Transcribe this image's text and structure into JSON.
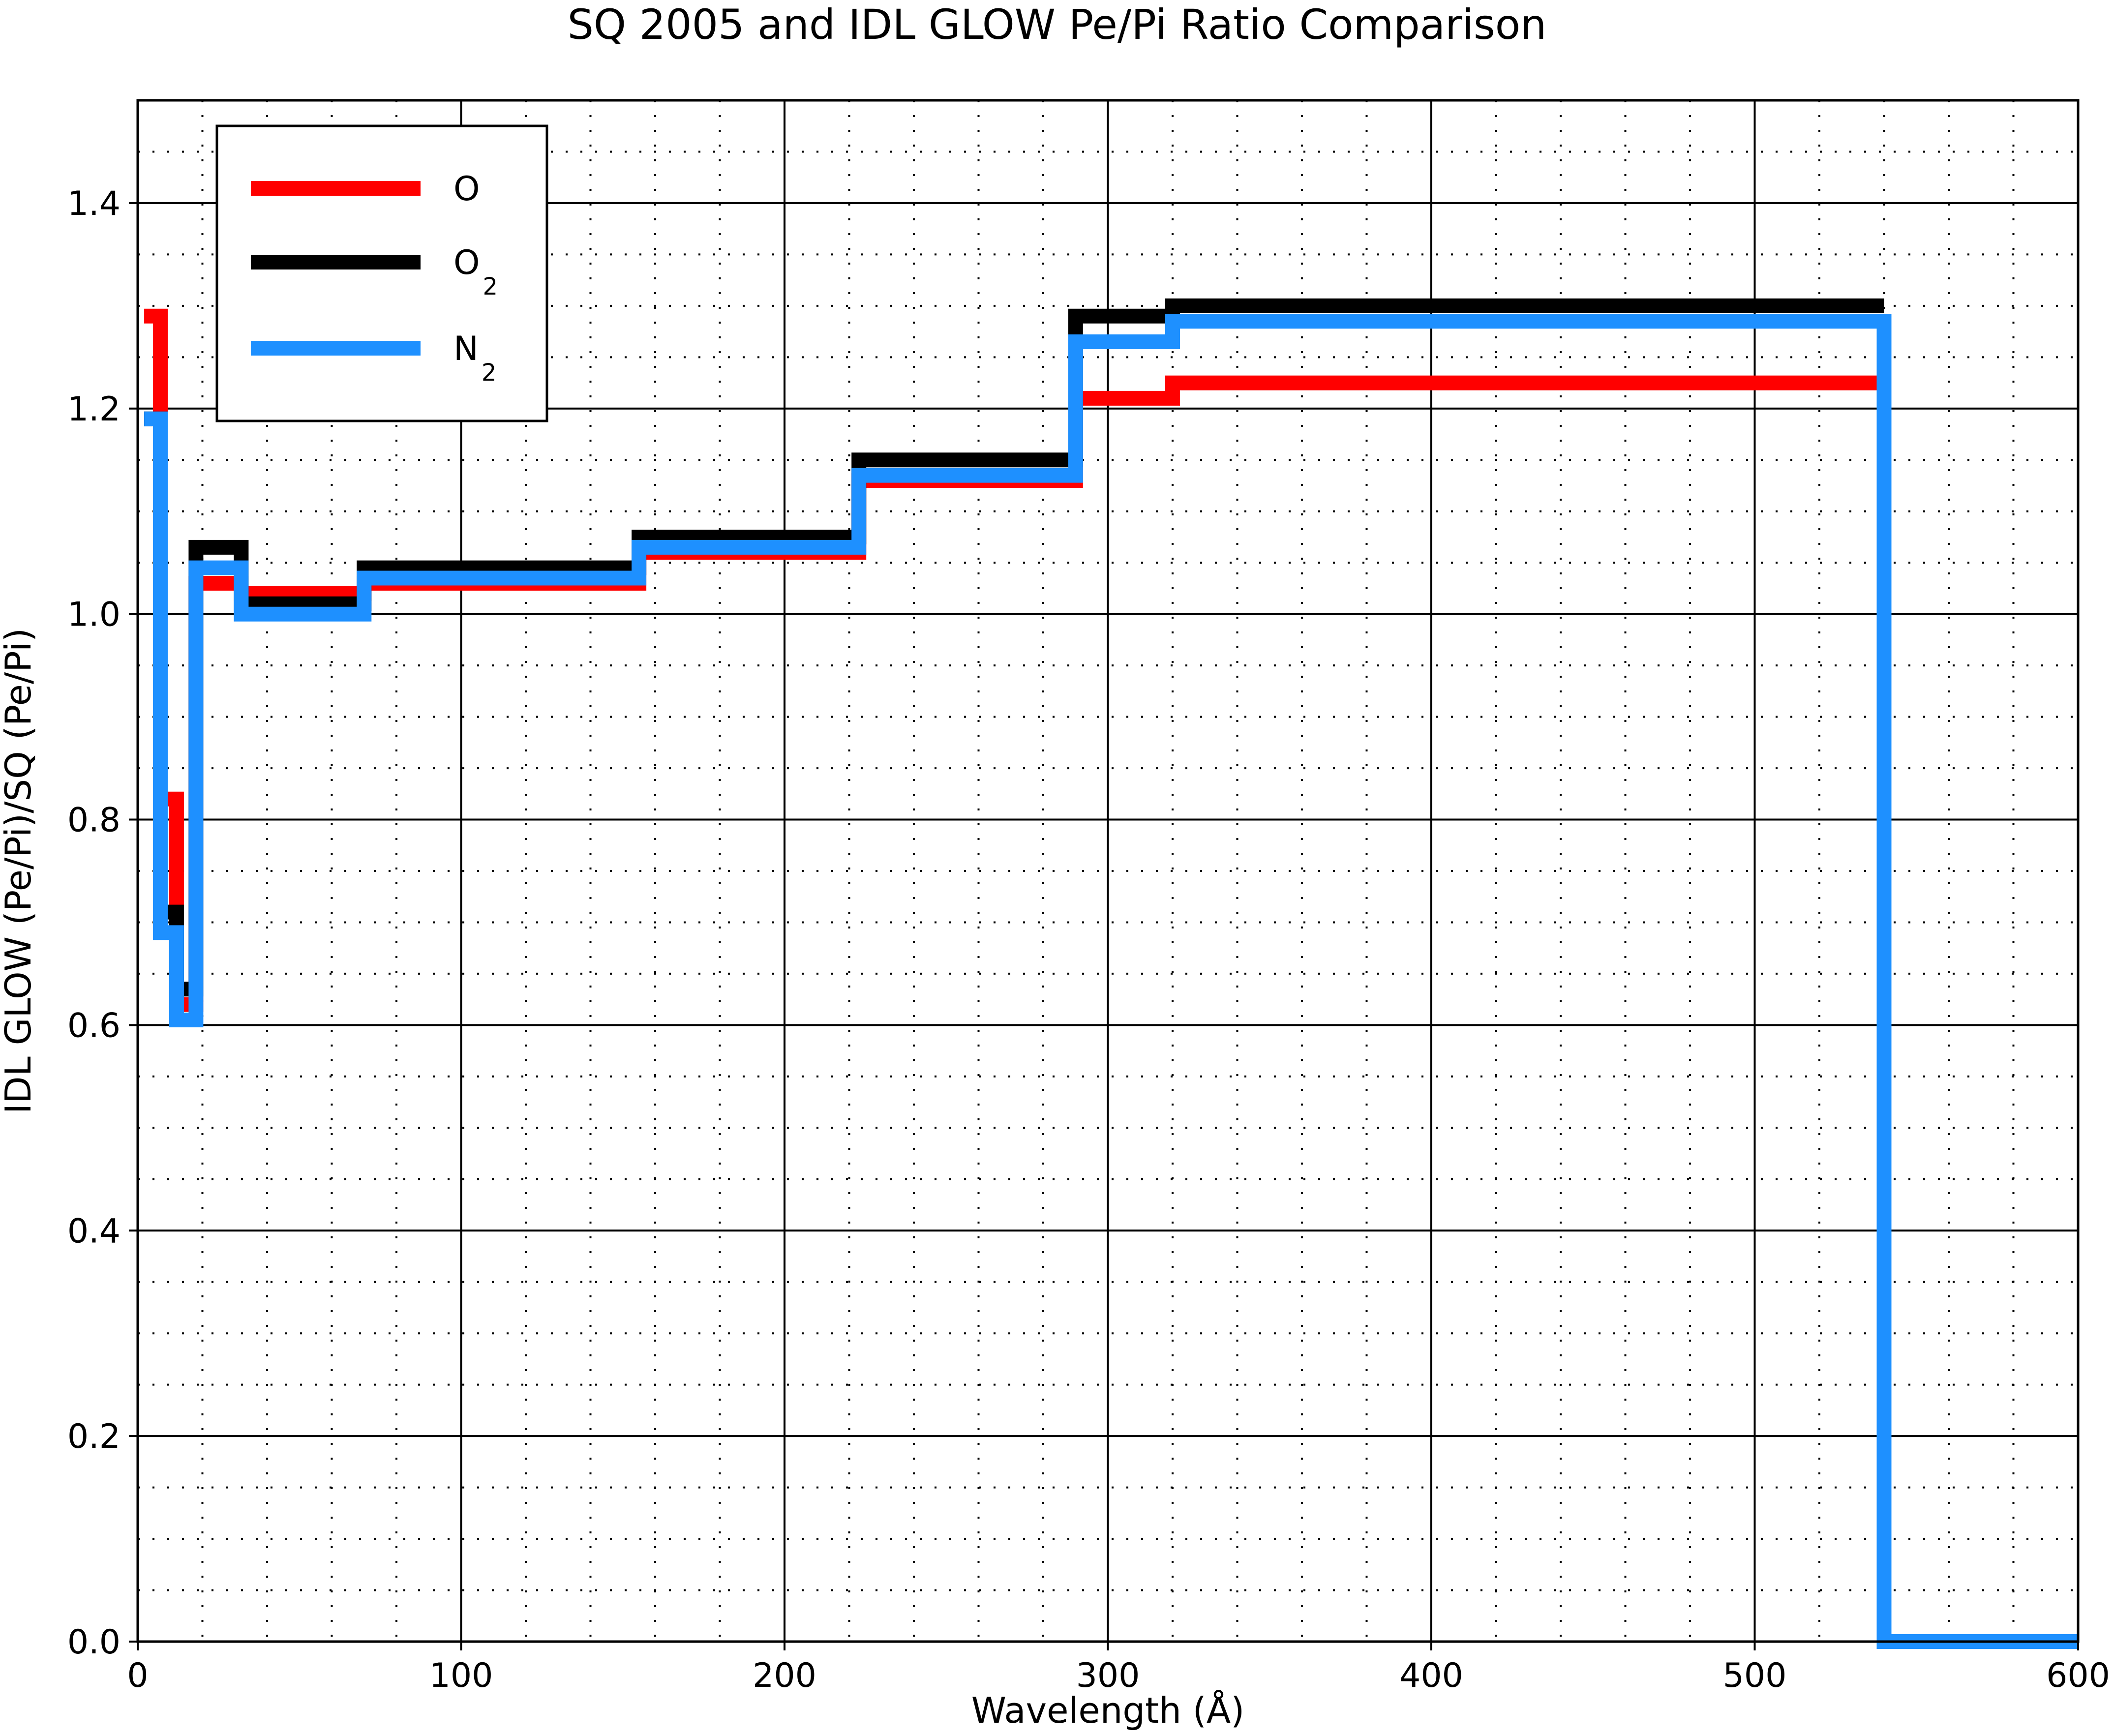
{
  "chart_data": {
    "type": "line",
    "title": "SQ 2005 and IDL GLOW Pe/Pi Ratio Comparison",
    "xlabel": "Wavelength (Å)",
    "ylabel": "IDL GLOW (Pe/Pi)/SQ (Pe/Pi)",
    "xlim": [
      0,
      600
    ],
    "ylim": [
      0,
      1.5
    ],
    "xticks": [
      0,
      100,
      200,
      300,
      400,
      500,
      600
    ],
    "xtick_labels": [
      "0",
      "100",
      "200",
      "300",
      "400",
      "500",
      "600"
    ],
    "yticks": [
      0.0,
      0.2,
      0.4,
      0.6,
      0.8,
      1.0,
      1.2,
      1.4
    ],
    "ytick_labels": [
      "0.0",
      "0.2",
      "0.4",
      "0.6",
      "0.8",
      "1.0",
      "1.2",
      "1.4"
    ],
    "grid": true,
    "step": true,
    "legend_position": "top-left",
    "series": [
      {
        "name": "O",
        "color": "#ff0000",
        "x": [
          2,
          7,
          7,
          12,
          12,
          18,
          18,
          32,
          32,
          70,
          70,
          155,
          155,
          223,
          223,
          290,
          290,
          320,
          320,
          540
        ],
        "y": [
          1.29,
          1.29,
          0.82,
          0.82,
          0.62,
          0.62,
          1.03,
          1.03,
          1.02,
          1.02,
          1.03,
          1.03,
          1.06,
          1.06,
          1.13,
          1.13,
          1.21,
          1.21,
          1.225,
          1.225
        ]
      },
      {
        "name": "O2",
        "color": "#000000",
        "x": [
          2,
          7,
          7,
          12,
          12,
          18,
          18,
          32,
          32,
          70,
          70,
          155,
          155,
          223,
          223,
          290,
          290,
          320,
          320,
          540
        ],
        "y": [
          1.19,
          1.19,
          0.71,
          0.71,
          0.635,
          0.635,
          1.065,
          1.065,
          1.01,
          1.01,
          1.045,
          1.045,
          1.075,
          1.075,
          1.15,
          1.15,
          1.29,
          1.29,
          1.3,
          1.3
        ]
      },
      {
        "name": "N2",
        "color": "#1e90ff",
        "x": [
          2,
          7,
          7,
          12,
          12,
          18,
          18,
          32,
          32,
          70,
          70,
          155,
          155,
          223,
          223,
          290,
          290,
          320,
          320,
          540,
          540,
          600
        ],
        "y": [
          1.19,
          1.19,
          0.69,
          0.69,
          0.605,
          0.605,
          1.045,
          1.045,
          1.0,
          1.0,
          1.035,
          1.035,
          1.065,
          1.065,
          1.135,
          1.135,
          1.265,
          1.265,
          1.285,
          1.285,
          0.0,
          0.0
        ]
      }
    ],
    "legend": {
      "entries": [
        {
          "base": "O",
          "sub": ""
        },
        {
          "base": "O",
          "sub": "2"
        },
        {
          "base": "N",
          "sub": "2"
        }
      ]
    }
  }
}
